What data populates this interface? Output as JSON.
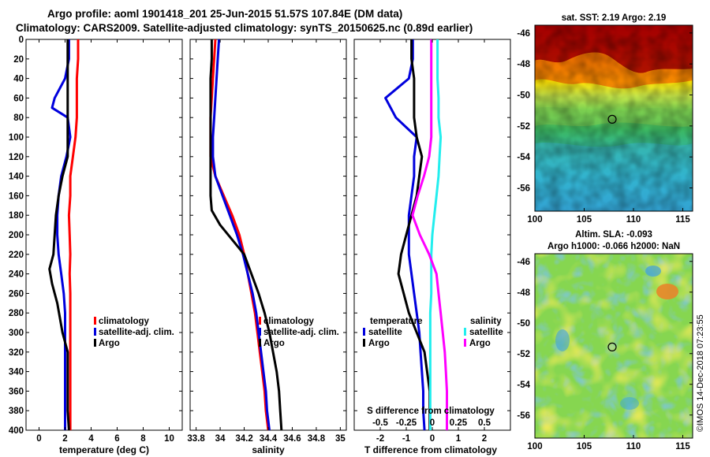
{
  "title_line1": "Argo profile: aoml 1901418_201 25-Jun-2015 51.57S 107.84E (DM data)",
  "title_line2": "Climatology: CARS2009. Satellite-adjusted climatology: synTS_20150625.nc (0.89d earlier)",
  "credit": "©IMOS 14-Dec-2018 07:23:55",
  "colors": {
    "red": "#ff0000",
    "blue": "#0000dd",
    "black": "#000000",
    "magenta": "#ff00ff",
    "cyan": "#22eeee"
  },
  "depth_ticks": [
    "0",
    "20",
    "40",
    "60",
    "80",
    "100",
    "120",
    "140",
    "160",
    "180",
    "200",
    "220",
    "240",
    "260",
    "280",
    "300",
    "320",
    "340",
    "360",
    "380",
    "400"
  ],
  "chart_data": [
    {
      "type": "line",
      "name": "temperature",
      "xlabel": "temperature (deg C)",
      "ylabel": "depth",
      "xlim": [
        -1,
        11
      ],
      "ylim": [
        0,
        400
      ],
      "xticks": [
        0,
        2,
        4,
        6,
        8,
        10
      ],
      "xtick_labels": [
        "0",
        "2",
        "4",
        "6",
        "8",
        "10"
      ],
      "legend": [
        "climatology",
        "satellite-adj. clim.",
        "Argo"
      ],
      "series": [
        {
          "name": "climatology",
          "color": "red",
          "x": [
            3.0,
            3.0,
            2.9,
            2.9,
            2.9,
            2.8,
            2.6,
            2.4,
            2.4,
            2.3,
            2.35,
            2.4,
            2.35,
            2.4,
            2.4,
            2.4,
            2.4,
            2.4,
            2.4,
            2.4,
            2.4
          ],
          "y": [
            0,
            20,
            40,
            60,
            80,
            100,
            120,
            140,
            160,
            180,
            200,
            220,
            240,
            260,
            280,
            300,
            320,
            340,
            360,
            380,
            400
          ]
        },
        {
          "name": "satellite-adj. clim.",
          "color": "blue",
          "x": [
            2.3,
            2.3,
            2.0,
            1.2,
            1.0,
            2.2,
            2.4,
            2.1,
            1.7,
            1.5,
            1.4,
            1.4,
            1.5,
            1.7,
            1.9,
            2.0,
            2.0,
            2.0,
            2.0,
            2.0,
            2.0,
            2.0
          ],
          "y": [
            0,
            20,
            40,
            60,
            70,
            80,
            100,
            120,
            140,
            160,
            180,
            200,
            220,
            240,
            260,
            280,
            300,
            320,
            340,
            360,
            380,
            400
          ]
        },
        {
          "name": "Argo",
          "color": "black",
          "x": [
            2.2,
            2.2,
            2.2,
            2.2,
            2.2,
            2.2,
            2.2,
            1.8,
            1.5,
            1.3,
            1.2,
            1.1,
            0.8,
            1.0,
            1.4,
            1.8,
            2.2,
            2.2,
            2.2,
            2.2,
            2.3
          ],
          "y": [
            0,
            20,
            40,
            60,
            80,
            100,
            120,
            140,
            160,
            180,
            200,
            220,
            235,
            250,
            270,
            300,
            320,
            340,
            360,
            380,
            400
          ]
        }
      ]
    },
    {
      "type": "line",
      "name": "salinity",
      "xlabel": "salinity",
      "ylabel": "depth",
      "xlim": [
        33.75,
        35.05
      ],
      "ylim": [
        0,
        400
      ],
      "xticks": [
        33.8,
        34.0,
        34.2,
        34.4,
        34.6,
        34.8,
        35.0
      ],
      "xtick_labels": [
        "33.8",
        "34",
        "34.2",
        "34.4",
        "34.6",
        "34.8",
        "35"
      ],
      "legend": [
        "climatology",
        "satellite-adj. clim.",
        "Argo"
      ],
      "series": [
        {
          "name": "climatology",
          "color": "red",
          "x": [
            33.96,
            33.95,
            33.94,
            33.93,
            33.92,
            33.92,
            33.92,
            33.96,
            34.03,
            34.1,
            34.16,
            34.2,
            34.23,
            34.26,
            34.29,
            34.31,
            34.33,
            34.35,
            34.37,
            34.38,
            34.4
          ],
          "y": [
            0,
            20,
            40,
            60,
            80,
            100,
            120,
            140,
            160,
            180,
            200,
            220,
            240,
            260,
            280,
            300,
            320,
            340,
            360,
            380,
            400
          ]
        },
        {
          "name": "satellite-adj. clim.",
          "color": "blue",
          "x": [
            33.99,
            33.98,
            33.97,
            33.96,
            33.95,
            33.94,
            33.94,
            33.96,
            34.02,
            34.08,
            34.14,
            34.19,
            34.23,
            34.27,
            34.3,
            34.32,
            34.34,
            34.36,
            34.38,
            34.39,
            34.41
          ],
          "y": [
            0,
            20,
            40,
            60,
            80,
            100,
            120,
            140,
            160,
            180,
            200,
            220,
            240,
            260,
            280,
            300,
            320,
            340,
            360,
            380,
            400
          ]
        },
        {
          "name": "Argo",
          "color": "black",
          "x": [
            33.93,
            33.93,
            33.92,
            33.92,
            33.92,
            33.92,
            33.92,
            33.92,
            33.92,
            33.93,
            34.0,
            34.1,
            34.2,
            34.26,
            34.32,
            34.37,
            34.41,
            34.44,
            34.47,
            34.49,
            34.5,
            34.51
          ],
          "y": [
            0,
            20,
            40,
            60,
            80,
            100,
            120,
            140,
            160,
            175,
            190,
            205,
            220,
            240,
            260,
            280,
            300,
            320,
            340,
            360,
            380,
            400
          ]
        }
      ]
    },
    {
      "type": "line",
      "name": "difference",
      "xlabel": "T difference from climatology",
      "top_axis_label": "S difference from climatology",
      "ylabel": "depth",
      "xlim": [
        -3,
        3
      ],
      "ylim": [
        0,
        400
      ],
      "xticks": [
        -2,
        -1,
        0,
        1,
        2
      ],
      "xtick_labels": [
        "-2",
        "-1",
        "0",
        "1",
        "2"
      ],
      "sticks": [
        -0.5,
        -0.25,
        0,
        0.25,
        0.5
      ],
      "stick_labels": [
        "-0.5",
        "-0.25",
        "0",
        "0.25",
        "0.5"
      ],
      "legend_temperature_title": "temperature",
      "legend_salinity_title": "salinity",
      "legend_temperature": [
        "satellite",
        "Argo"
      ],
      "legend_salinity": [
        "satellite",
        "Argo"
      ],
      "series": [
        {
          "name": "temperature satellite",
          "color": "blue",
          "x": [
            -0.75,
            -0.75,
            -0.9,
            -1.8,
            -1.4,
            -0.6,
            -0.7,
            -0.7,
            -0.8,
            -0.9,
            -0.9,
            -0.9,
            -0.8,
            -0.7,
            -0.6,
            -0.5,
            -0.45,
            -0.4,
            -0.35,
            -0.35,
            -0.3
          ],
          "y": [
            0,
            20,
            40,
            60,
            80,
            100,
            120,
            140,
            160,
            180,
            200,
            220,
            240,
            260,
            280,
            300,
            320,
            340,
            360,
            380,
            400
          ]
        },
        {
          "name": "temperature Argo",
          "color": "black",
          "x": [
            -0.8,
            -0.8,
            -0.7,
            -0.7,
            -0.7,
            -0.6,
            -0.4,
            -0.5,
            -0.6,
            -0.8,
            -1.0,
            -1.2,
            -1.3,
            -1.1,
            -0.9,
            -0.6,
            -0.3,
            -0.2,
            -0.1,
            -0.1,
            -0.1
          ],
          "y": [
            0,
            20,
            40,
            60,
            80,
            100,
            120,
            140,
            160,
            180,
            200,
            220,
            240,
            260,
            280,
            300,
            320,
            340,
            360,
            380,
            400
          ]
        },
        {
          "name": "salinity satellite",
          "color": "cyan",
          "x": [
            0.05,
            0.05,
            0.05,
            0.06,
            0.06,
            0.08,
            0.07,
            0.06,
            0.04,
            0.02,
            0.0,
            -0.01,
            -0.01,
            -0.01,
            -0.02,
            -0.02,
            -0.02,
            -0.02,
            -0.02,
            -0.02,
            -0.02
          ],
          "y": [
            0,
            20,
            40,
            60,
            80,
            100,
            120,
            140,
            160,
            180,
            200,
            220,
            240,
            260,
            280,
            300,
            320,
            340,
            360,
            380,
            400
          ]
        },
        {
          "name": "salinity Argo",
          "color": "magenta",
          "x": [
            -0.01,
            -0.01,
            -0.01,
            -0.01,
            -0.01,
            -0.01,
            -0.03,
            -0.08,
            -0.14,
            -0.19,
            -0.12,
            -0.03,
            0.04,
            0.06,
            0.08,
            0.1,
            0.12,
            0.13,
            0.14,
            0.14,
            0.14
          ],
          "y": [
            0,
            20,
            40,
            60,
            80,
            100,
            120,
            140,
            160,
            180,
            200,
            220,
            240,
            260,
            280,
            300,
            320,
            340,
            360,
            380,
            400
          ]
        }
      ]
    },
    {
      "type": "heatmap",
      "name": "sst-map",
      "title": "sat. SST: 2.19 Argo: 2.19",
      "xticks": [
        "100",
        "105",
        "110",
        "115"
      ],
      "yticks": [
        "-46",
        "-48",
        "-50",
        "-52",
        "-54",
        "-56"
      ],
      "xlim": [
        100,
        116
      ],
      "ylim": [
        -57.5,
        -45.5
      ],
      "marker": {
        "lon": 107.84,
        "lat": -51.57
      }
    },
    {
      "type": "heatmap",
      "name": "sla-map",
      "title_line1": "Altim. SLA: -0.093",
      "title_line2": "Argo h1000: -0.066 h2000: NaN",
      "xticks": [
        "100",
        "105",
        "110",
        "115"
      ],
      "yticks": [
        "-46",
        "-48",
        "-50",
        "-52",
        "-54",
        "-56"
      ],
      "xlim": [
        100,
        116
      ],
      "ylim": [
        -57.5,
        -45.5
      ],
      "marker": {
        "lon": 107.84,
        "lat": -51.57
      }
    }
  ]
}
